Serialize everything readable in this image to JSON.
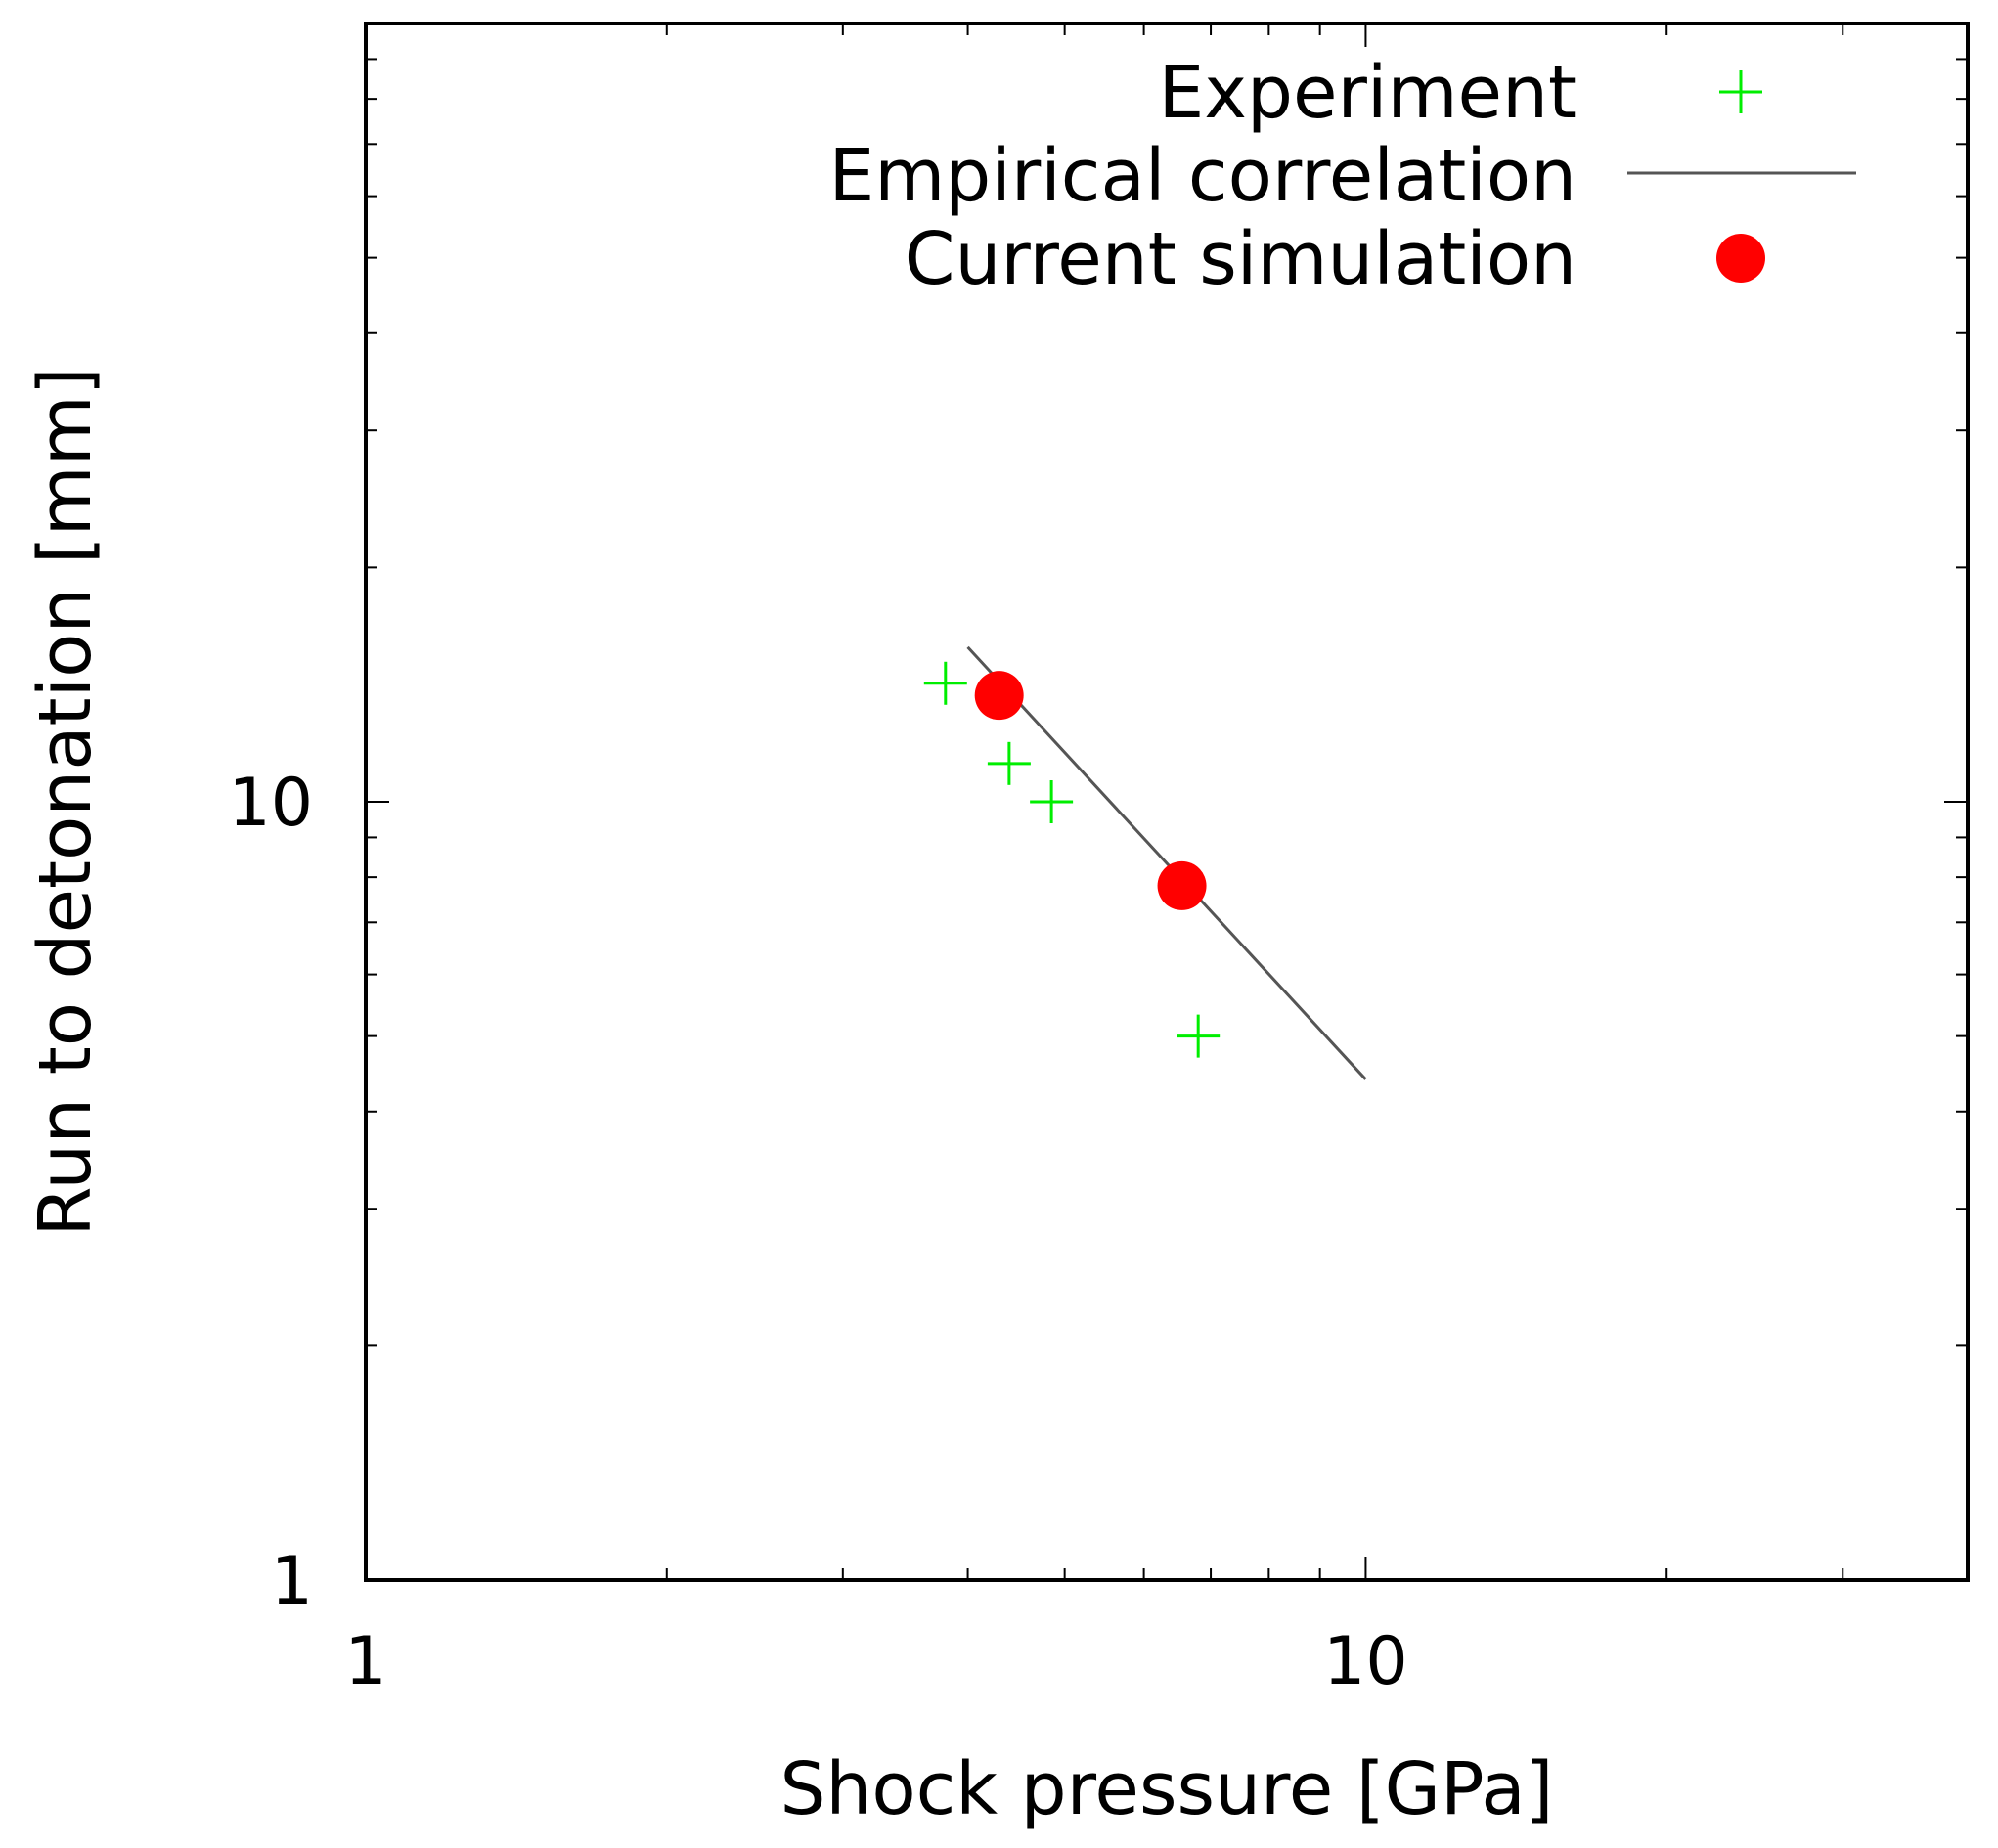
{
  "chart_data": {
    "type": "scatter",
    "title": "",
    "xlabel": "Shock pressure [GPa]",
    "ylabel": "Run to detonation [mm]",
    "xscale": "log",
    "yscale": "log",
    "xlim": [
      1,
      40
    ],
    "ylim": [
      1,
      100
    ],
    "xticks": [
      {
        "value": 1,
        "label": "1"
      },
      {
        "value": 10,
        "label": "10"
      }
    ],
    "yticks": [
      {
        "value": 1,
        "label": "1"
      },
      {
        "value": 10,
        "label": "10"
      }
    ],
    "grid": false,
    "legend_position": "top-right",
    "colors": {
      "experiment": "#00ee00",
      "empirical": "#555555",
      "simulation": "#ff0000",
      "frame": "#000000"
    },
    "series": [
      {
        "name": "Experiment",
        "marker": "plus",
        "x": [
          3.8,
          4.4,
          4.85,
          6.8
        ],
        "y": [
          14.2,
          11.2,
          10.0,
          5.0
        ]
      },
      {
        "name": "Empirical correlation",
        "marker": "line",
        "x": [
          4.0,
          10.0
        ],
        "y": [
          15.8,
          4.4
        ]
      },
      {
        "name": "Current simulation",
        "marker": "circle",
        "x": [
          4.3,
          6.55
        ],
        "y": [
          13.7,
          7.8
        ]
      }
    ]
  }
}
